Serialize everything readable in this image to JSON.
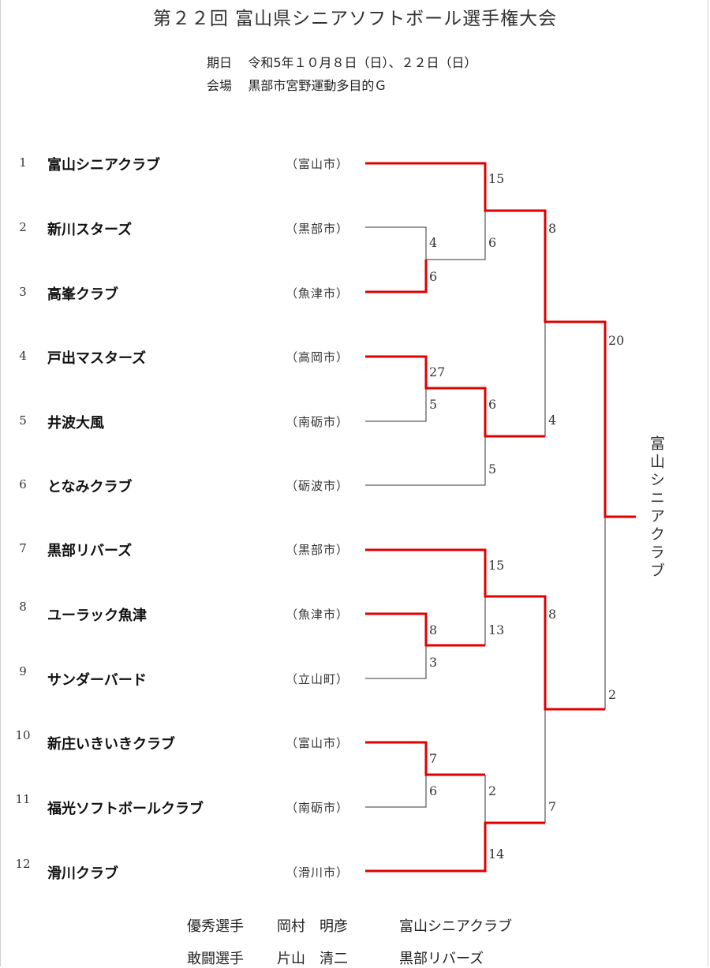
{
  "title": "第２２回 富山県シニアソフトボール選手権大会",
  "info": {
    "date_label": "期日",
    "date_value": "令和5年１０月８日（日）、２２日（日）",
    "venue_label": "会場",
    "venue_value": "黒部市宮野運動多目的Ｇ"
  },
  "teams": [
    {
      "seed": "1",
      "name": "富山シニアクラブ",
      "city": "（富山市）"
    },
    {
      "seed": "2",
      "name": "新川スターズ",
      "city": "（黒部市）"
    },
    {
      "seed": "3",
      "name": "高峯クラブ",
      "city": "（魚津市）"
    },
    {
      "seed": "4",
      "name": "戸出マスターズ",
      "city": "（高岡市）"
    },
    {
      "seed": "5",
      "name": "井波大風",
      "city": "（南砺市）"
    },
    {
      "seed": "6",
      "name": "となみクラブ",
      "city": "（砺波市）"
    },
    {
      "seed": "7",
      "name": "黒部リバーズ",
      "city": "（黒部市）"
    },
    {
      "seed": "8",
      "name": "ユーラック魚津",
      "city": "（魚津市）"
    },
    {
      "seed": "9",
      "name": "サンダーバード",
      "city": "（立山町）"
    },
    {
      "seed": "10",
      "name": "新庄いきいきクラブ",
      "city": "（富山市）"
    },
    {
      "seed": "11",
      "name": "福光ソフトボールクラブ",
      "city": "（南砺市）"
    },
    {
      "seed": "12",
      "name": "滑川クラブ",
      "city": "（滑川市）"
    }
  ],
  "scores": {
    "r1_2_3": [
      "4",
      "6"
    ],
    "r1_4_5": [
      "27",
      "5"
    ],
    "r1_8_9": [
      "8",
      "3"
    ],
    "r1_10_11": [
      "7",
      "6"
    ],
    "r2_1_vs_23": [
      "15",
      "6"
    ],
    "r2_45_vs_6": [
      "6",
      "5"
    ],
    "r2_7_vs_89": [
      "15",
      "13"
    ],
    "r2_1011_vs_12": [
      "2",
      "14"
    ],
    "sf_top": [
      "8",
      "4"
    ],
    "sf_bottom": [
      "8",
      "7"
    ],
    "final": [
      "20",
      "2"
    ]
  },
  "winner": "富山シニアクラブ",
  "awards": {
    "mvp_label": "優秀選手",
    "mvp_name": "岡村　明彦",
    "mvp_team": "富山シニアクラブ",
    "fighting_label": "敢闘選手",
    "fighting_name": "片山　清二",
    "fighting_team": "黒部リバーズ"
  },
  "colors": {
    "winning_line": "#e00000",
    "losing_line": "#333333"
  }
}
